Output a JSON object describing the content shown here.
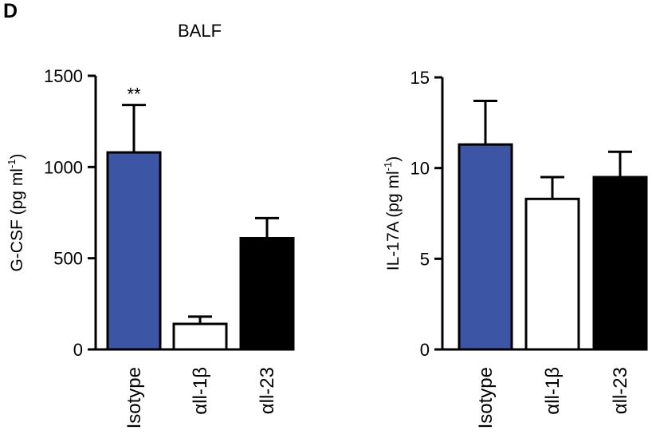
{
  "panel_label": "D",
  "panel_title": "BALF",
  "colors": {
    "isotype": "#3c55a5",
    "anti_il1b": "#ffffff",
    "anti_il23": "#000000"
  },
  "chart_data": [
    {
      "type": "bar",
      "title": "",
      "ylabel_main": "G-CSF (pg ml",
      "ylabel_sup": "-1",
      "ylabel_close": ")",
      "ylim": [
        0,
        1500
      ],
      "yticks": [
        0,
        500,
        1000,
        1500
      ],
      "categories": [
        "Isotype",
        "αll-1β",
        "αll-23"
      ],
      "values": [
        1080,
        140,
        610
      ],
      "errors": [
        260,
        40,
        110
      ],
      "annotations": [
        "**",
        "",
        ""
      ],
      "fills": [
        "#3c55a5",
        "#ffffff",
        "#000000"
      ]
    },
    {
      "type": "bar",
      "title": "",
      "ylabel_main": "IL-17A (pg ml",
      "ylabel_sup": "-1",
      "ylabel_close": ")",
      "ylim": [
        0,
        15
      ],
      "yticks": [
        0,
        5,
        10,
        15
      ],
      "categories": [
        "Isotype",
        "αll-1β",
        "αll-23"
      ],
      "values": [
        11.3,
        8.3,
        9.5
      ],
      "errors": [
        2.4,
        1.2,
        1.4
      ],
      "annotations": [
        "",
        "",
        ""
      ],
      "fills": [
        "#3c55a5",
        "#ffffff",
        "#000000"
      ]
    }
  ]
}
